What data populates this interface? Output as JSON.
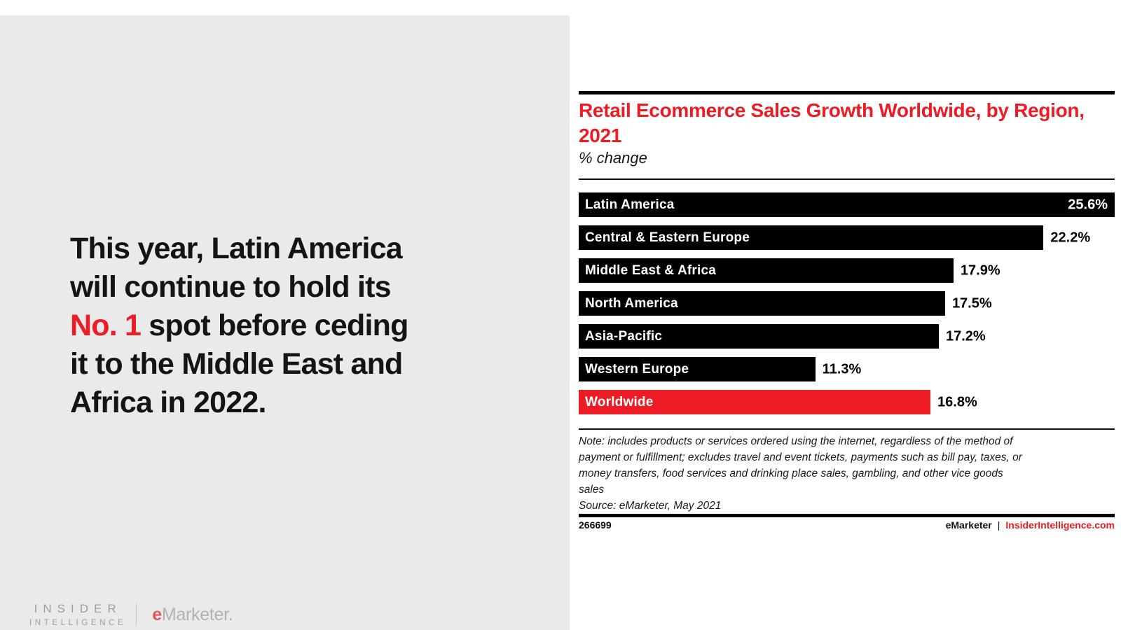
{
  "colors": {
    "accent_red": "#ed1c24",
    "panel_gray": "#eaeaea",
    "bar_black": "#000000",
    "logo_gray": "#9e9e9e"
  },
  "left_panel": {
    "quote": {
      "lines": [
        [
          {
            "t": "This year, Latin America"
          }
        ],
        [
          {
            "t": "will continue to hold its"
          }
        ],
        [
          {
            "t": "No. 1",
            "red": true
          },
          {
            "t": " spot before ceding"
          }
        ],
        [
          {
            "t": "it to the Middle East and"
          }
        ],
        [
          {
            "t": "Africa in 2022."
          }
        ]
      ]
    },
    "logos": {
      "insider_line1": "INSIDER",
      "insider_line2": "INTELLIGENCE",
      "emarketer_e": "e",
      "emarketer_rest": "Marketer."
    }
  },
  "chart": {
    "title": "Retail Ecommerce Sales Growth Worldwide, by Region, 2021",
    "subtitle": "% change",
    "note": "Note: includes products or services ordered using the internet, regardless of the method of\npayment or fulfillment; excludes travel and event tickets, payments such as bill pay, taxes, or\nmoney transfers, food services and drinking place sales, gambling, and other vice goods\nsales",
    "source": "Source: eMarketer, May 2021",
    "chart_id": "266699",
    "footer_brand": "eMarketer",
    "footer_pipe": "|",
    "footer_site": "InsiderIntelligence.com"
  },
  "chart_data": {
    "type": "bar",
    "orientation": "horizontal",
    "title": "Retail Ecommerce Sales Growth Worldwide, by Region, 2021",
    "xlabel": "",
    "ylabel": "% change",
    "xlim": [
      0,
      25.6
    ],
    "grid": false,
    "legend": false,
    "categories": [
      "Latin America",
      "Central & Eastern Europe",
      "Middle East & Africa",
      "North America",
      "Asia-Pacific",
      "Western Europe",
      "Worldwide"
    ],
    "values": [
      25.6,
      22.2,
      17.9,
      17.5,
      17.2,
      11.3,
      16.8
    ],
    "value_labels": [
      "25.6%",
      "22.2%",
      "17.9%",
      "17.5%",
      "17.2%",
      "11.3%",
      "16.8%"
    ],
    "bar_colors": [
      "#000000",
      "#000000",
      "#000000",
      "#000000",
      "#000000",
      "#000000",
      "#ed1c24"
    ],
    "value_inside": [
      true,
      false,
      false,
      false,
      false,
      false,
      false
    ]
  }
}
